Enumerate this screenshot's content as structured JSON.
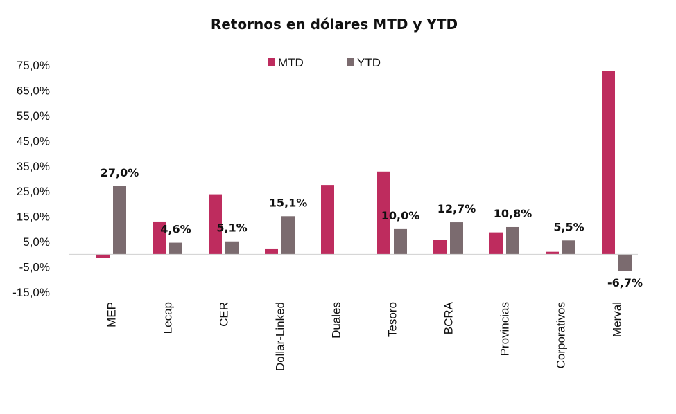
{
  "chart_data": {
    "type": "bar",
    "title": "Retornos en dólares MTD y YTD",
    "xlabel": "",
    "ylabel": "",
    "ylim": [
      -15,
      75
    ],
    "yticks": [
      75,
      65,
      55,
      45,
      35,
      25,
      15,
      5,
      -5,
      -15
    ],
    "ytick_labels": [
      "75,0%",
      "65,0%",
      "55,0%",
      "45,0%",
      "35,0%",
      "25,0%",
      "15,0%",
      "5,0%",
      "-5,0%",
      "-15,0%"
    ],
    "legend_position": "top-center",
    "grid": false,
    "categories": [
      "MEP",
      "Lecap",
      "CER",
      "Dollar-Linked",
      "Duales",
      "Tesoro",
      "BCRA",
      "Provincias",
      "Corporativos",
      "Merval"
    ],
    "series": [
      {
        "name": "MTD",
        "color": "#BE2C5E",
        "values": [
          -1.5,
          13.0,
          23.8,
          2.3,
          27.5,
          32.8,
          5.7,
          8.7,
          1.0,
          72.8
        ],
        "labels": [
          null,
          null,
          null,
          null,
          null,
          null,
          null,
          null,
          null,
          null
        ]
      },
      {
        "name": "YTD",
        "color": "#7B6B6F",
        "values": [
          27.0,
          4.6,
          5.1,
          15.1,
          0,
          10.0,
          12.7,
          10.8,
          5.5,
          -6.7
        ],
        "labels": [
          "27,0%",
          "4,6%",
          "5,1%",
          "15,1%",
          null,
          "10,0%",
          "12,7%",
          "10,8%",
          "5,5%",
          "-6,7%"
        ]
      }
    ]
  }
}
